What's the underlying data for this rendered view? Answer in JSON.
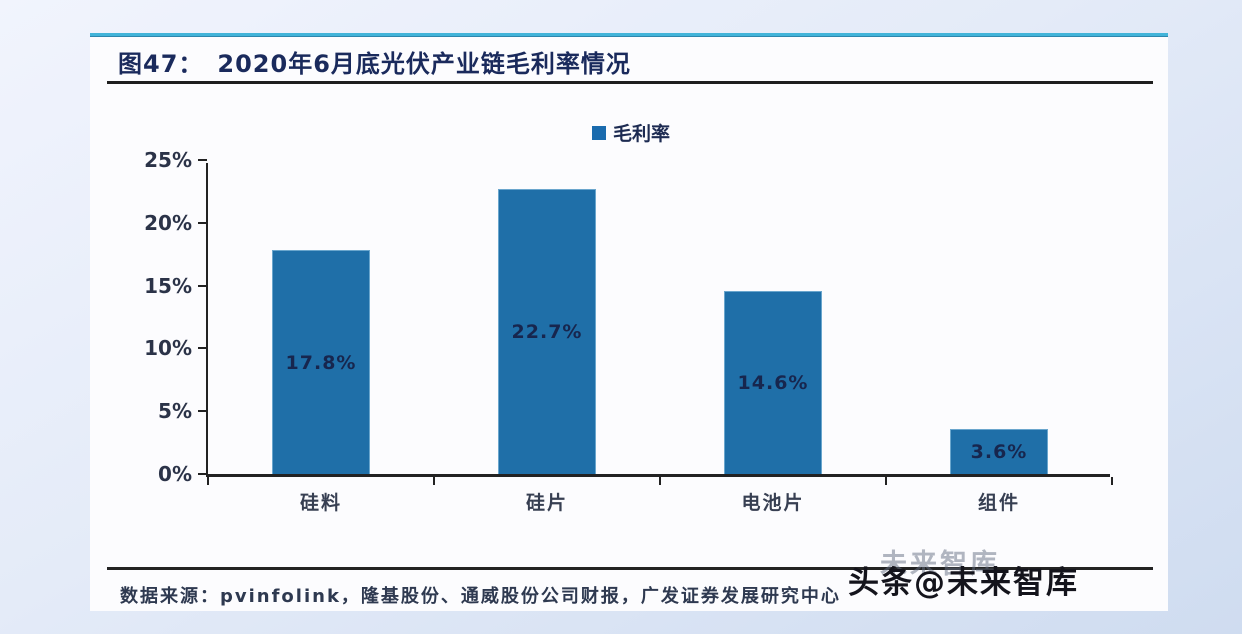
{
  "figure": {
    "number_label": "图47：",
    "title": "2020年6月底光伏产业链毛利率情况",
    "source_label": "数据来源：",
    "source_text": "pvinfolink，隆基股份、通威股份公司财报，广发证券发展研究中心",
    "watermark_ghost": "未来智库",
    "watermark_text": "头条@未来智库",
    "accent_color": "#42b4d9"
  },
  "chart_data": {
    "type": "bar",
    "title": "2020年6月底光伏产业链毛利率情况",
    "categories": [
      "硅料",
      "硅片",
      "电池片",
      "组件"
    ],
    "series": [
      {
        "name": "毛利率",
        "values": [
          17.8,
          22.7,
          14.6,
          3.6
        ]
      }
    ],
    "data_labels": [
      "17.8%",
      "22.7%",
      "14.6%",
      "3.6%"
    ],
    "ytick_labels": [
      "0%",
      "5%",
      "10%",
      "15%",
      "20%",
      "25%"
    ],
    "ylim": [
      0,
      25
    ],
    "ytick_step": 5,
    "legend_position": "top-center",
    "grid": false,
    "bar_color": "#1f6fa8",
    "data_label_color": "#17264e",
    "axis_color": "#222222"
  }
}
